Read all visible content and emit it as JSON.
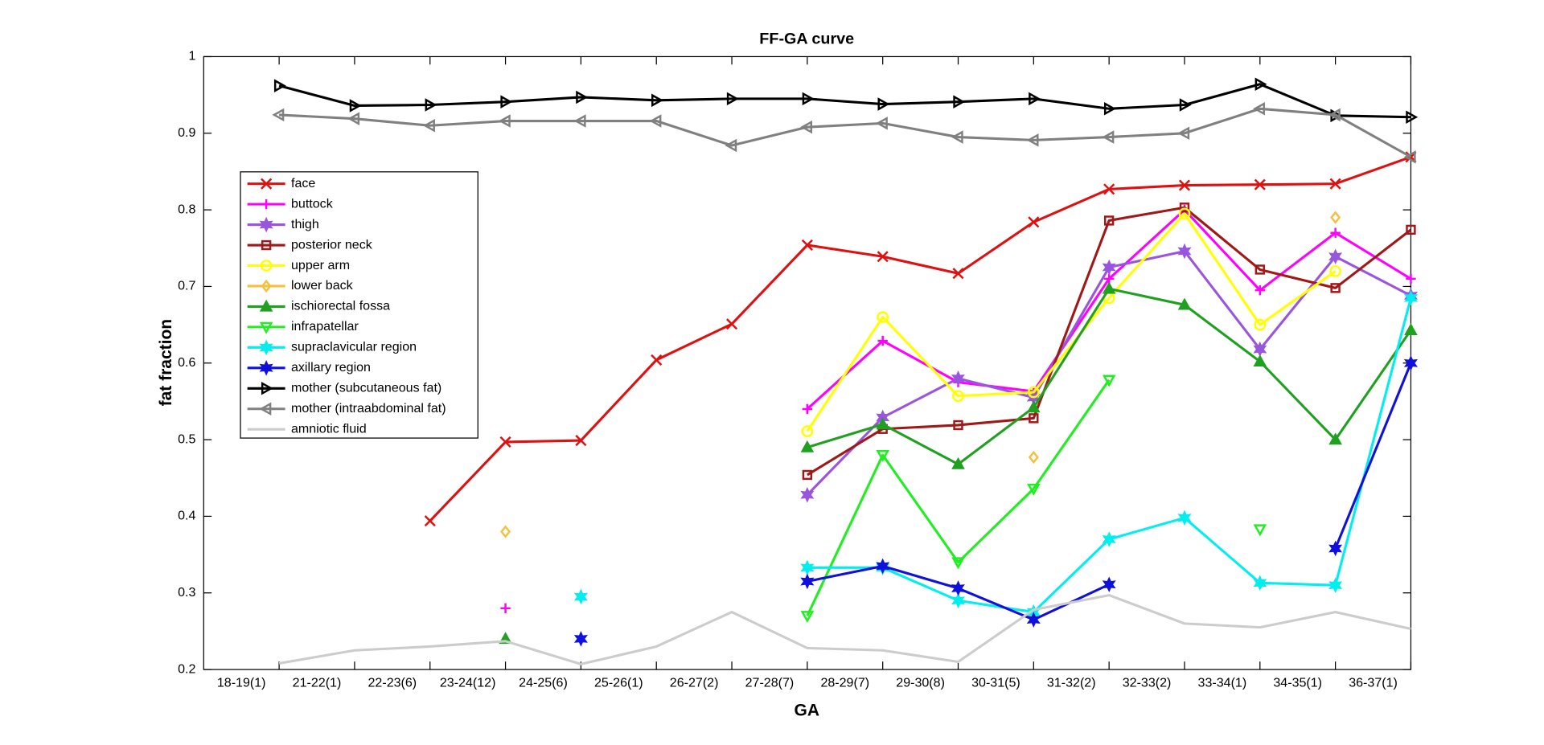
{
  "chart_data": {
    "type": "line",
    "title": "FF-GA curve",
    "x_label": "GA",
    "y_label": "fat fraction",
    "categories": [
      "18-19(1)",
      "21-22(1)",
      "22-23(6)",
      "23-24(12)",
      "24-25(6)",
      "25-26(1)",
      "26-27(2)",
      "27-28(7)",
      "28-29(7)",
      "29-30(8)",
      "30-31(5)",
      "31-32(2)",
      "32-33(2)",
      "33-34(1)",
      "34-35(1)",
      "36-37(1)"
    ],
    "ylim": [
      0.2,
      1
    ],
    "yticks": [
      0.2,
      0.3,
      0.4,
      0.5,
      0.6,
      0.7,
      0.8,
      0.9,
      1
    ],
    "legend": "upper left",
    "series": [
      {
        "name": "face",
        "color": "#e01010",
        "marker": "x",
        "values": [
          null,
          null,
          0.394,
          0.497,
          0.499,
          0.604,
          0.651,
          0.754,
          0.739,
          0.717,
          0.784,
          0.827,
          0.832,
          0.833,
          0.834,
          0.869
        ]
      },
      {
        "name": "buttock",
        "color": "#ff00ff",
        "marker": "plus",
        "values": [
          null,
          null,
          null,
          0.28,
          null,
          null,
          null,
          0.54,
          0.629,
          0.575,
          0.563,
          0.71,
          0.8,
          0.695,
          0.77,
          0.71
        ]
      },
      {
        "name": "thigh",
        "color": "#9955dd",
        "marker": "hexagram",
        "values": [
          null,
          null,
          null,
          null,
          null,
          null,
          null,
          0.428,
          0.529,
          0.58,
          0.555,
          0.725,
          0.746,
          0.618,
          0.739,
          0.688
        ]
      },
      {
        "name": "posterior neck",
        "color": "#a01818",
        "marker": "square",
        "values": [
          null,
          null,
          null,
          null,
          null,
          null,
          null,
          0.454,
          0.514,
          0.519,
          0.528,
          0.786,
          0.803,
          0.722,
          0.698,
          0.774
        ]
      },
      {
        "name": "upper arm",
        "color": "#ffff00",
        "marker": "circle",
        "values": [
          null,
          null,
          null,
          null,
          null,
          null,
          null,
          0.511,
          0.66,
          0.557,
          0.562,
          0.685,
          0.795,
          0.65,
          0.72,
          null
        ]
      },
      {
        "name": "lower back",
        "color": "#f5c040",
        "marker": "diamond",
        "values": [
          null,
          null,
          null,
          0.38,
          null,
          null,
          null,
          null,
          null,
          null,
          0.477,
          null,
          null,
          null,
          0.79,
          null
        ]
      },
      {
        "name": "ischiorectal fossa",
        "color": "#20a020",
        "marker": "triup",
        "values": [
          null,
          null,
          null,
          0.24,
          null,
          null,
          null,
          0.49,
          0.52,
          0.468,
          0.542,
          0.697,
          0.676,
          0.602,
          0.5,
          0.643
        ]
      },
      {
        "name": "infrapatellar",
        "color": "#20ee20",
        "marker": "tridown",
        "values": [
          null,
          null,
          null,
          null,
          null,
          null,
          null,
          0.27,
          0.48,
          0.34,
          0.436,
          0.578,
          null,
          0.383,
          null,
          null
        ]
      },
      {
        "name": "supraclavicular region",
        "color": "#00eeee",
        "marker": "hexagram",
        "values": [
          null,
          null,
          null,
          null,
          0.295,
          null,
          null,
          0.333,
          0.333,
          0.29,
          0.275,
          0.37,
          0.398,
          0.313,
          0.31,
          0.685
        ]
      },
      {
        "name": "axillary region",
        "color": "#1010dd",
        "marker": "hexagram",
        "values": [
          null,
          null,
          null,
          null,
          0.24,
          null,
          null,
          0.315,
          0.335,
          0.306,
          0.265,
          0.311,
          null,
          null,
          0.358,
          0.6
        ]
      },
      {
        "name": "mother (subcutaneous fat)",
        "color": "#000000",
        "marker": "triright",
        "values": [
          0.962,
          0.936,
          0.937,
          0.941,
          0.947,
          0.943,
          0.945,
          0.945,
          0.938,
          0.941,
          0.945,
          0.932,
          0.937,
          0.964,
          0.923,
          0.921
        ]
      },
      {
        "name": "mother (intraabdominal fat)",
        "color": "#808080",
        "marker": "trileft",
        "values": [
          0.924,
          0.919,
          0.91,
          0.916,
          0.916,
          0.916,
          0.884,
          0.908,
          0.913,
          0.895,
          0.891,
          0.895,
          0.9,
          0.932,
          0.924,
          0.869
        ]
      },
      {
        "name": "amniotic fluid",
        "color": "#cccccc",
        "marker": "none",
        "values": [
          0.208,
          0.225,
          0.23,
          0.237,
          0.207,
          0.23,
          0.275,
          0.228,
          0.225,
          0.21,
          0.278,
          0.297,
          0.26,
          0.255,
          0.275,
          0.253
        ]
      }
    ]
  }
}
